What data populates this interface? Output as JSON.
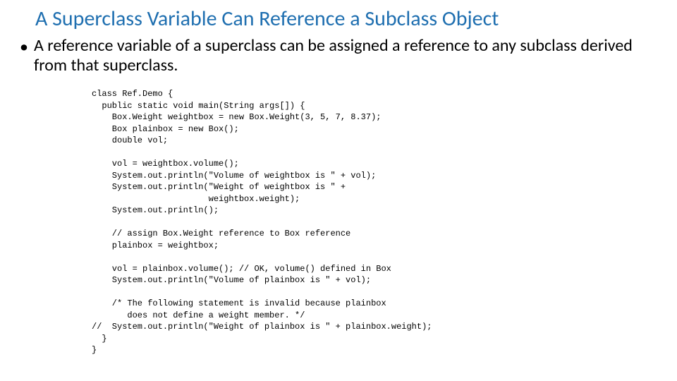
{
  "title": "A Superclass Variable Can Reference a Subclass Object",
  "bullet": "A reference variable of a superclass can be assigned a reference to any subclass derived from that superclass.",
  "code": {
    "l01": "class Ref.Demo {",
    "l02": "  public static void main(String args[]) {",
    "l03": "    Box.Weight weightbox = new Box.Weight(3, 5, 7, 8.37);",
    "l04": "    Box plainbox = new Box();",
    "l05": "    double vol;",
    "l06": "",
    "l07": "    vol = weightbox.volume();",
    "l08": "    System.out.println(\"Volume of weightbox is \" + vol);",
    "l09": "    System.out.println(\"Weight of weightbox is \" +",
    "l10": "                       weightbox.weight);",
    "l11": "    System.out.println();",
    "l12": "",
    "l13": "    // assign Box.Weight reference to Box reference",
    "l14": "    plainbox = weightbox;",
    "l15": "",
    "l16": "    vol = plainbox.volume(); // OK, volume() defined in Box",
    "l17": "    System.out.println(\"Volume of plainbox is \" + vol);",
    "l18": "",
    "l19": "    /* The following statement is invalid because plainbox",
    "l20": "       does not define a weight member. */",
    "l21": "//  System.out.println(\"Weight of plainbox is \" + plainbox.weight);",
    "l22": "  }",
    "l23": "}"
  }
}
